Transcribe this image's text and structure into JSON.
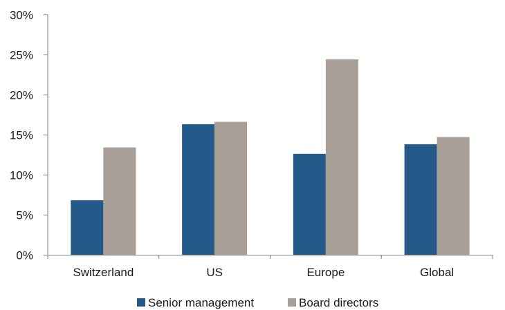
{
  "chart_data": {
    "type": "bar",
    "categories": [
      "Switzerland",
      "US",
      "Europe",
      "Global"
    ],
    "series": [
      {
        "name": "Senior management",
        "color": "#245a8a",
        "values": [
          6.8,
          16.3,
          12.6,
          13.8
        ]
      },
      {
        "name": "Board directors",
        "color": "#a89f97",
        "values": [
          13.4,
          16.6,
          24.4,
          14.7
        ]
      }
    ],
    "title": "",
    "xlabel": "",
    "ylabel": "",
    "ylim": [
      0,
      30
    ],
    "yticks": [
      0,
      5,
      10,
      15,
      20,
      25,
      30
    ],
    "ytick_labels": [
      "0%",
      "5%",
      "10%",
      "15%",
      "20%",
      "25%",
      "30%"
    ],
    "grid": false,
    "legend_position": "bottom"
  }
}
